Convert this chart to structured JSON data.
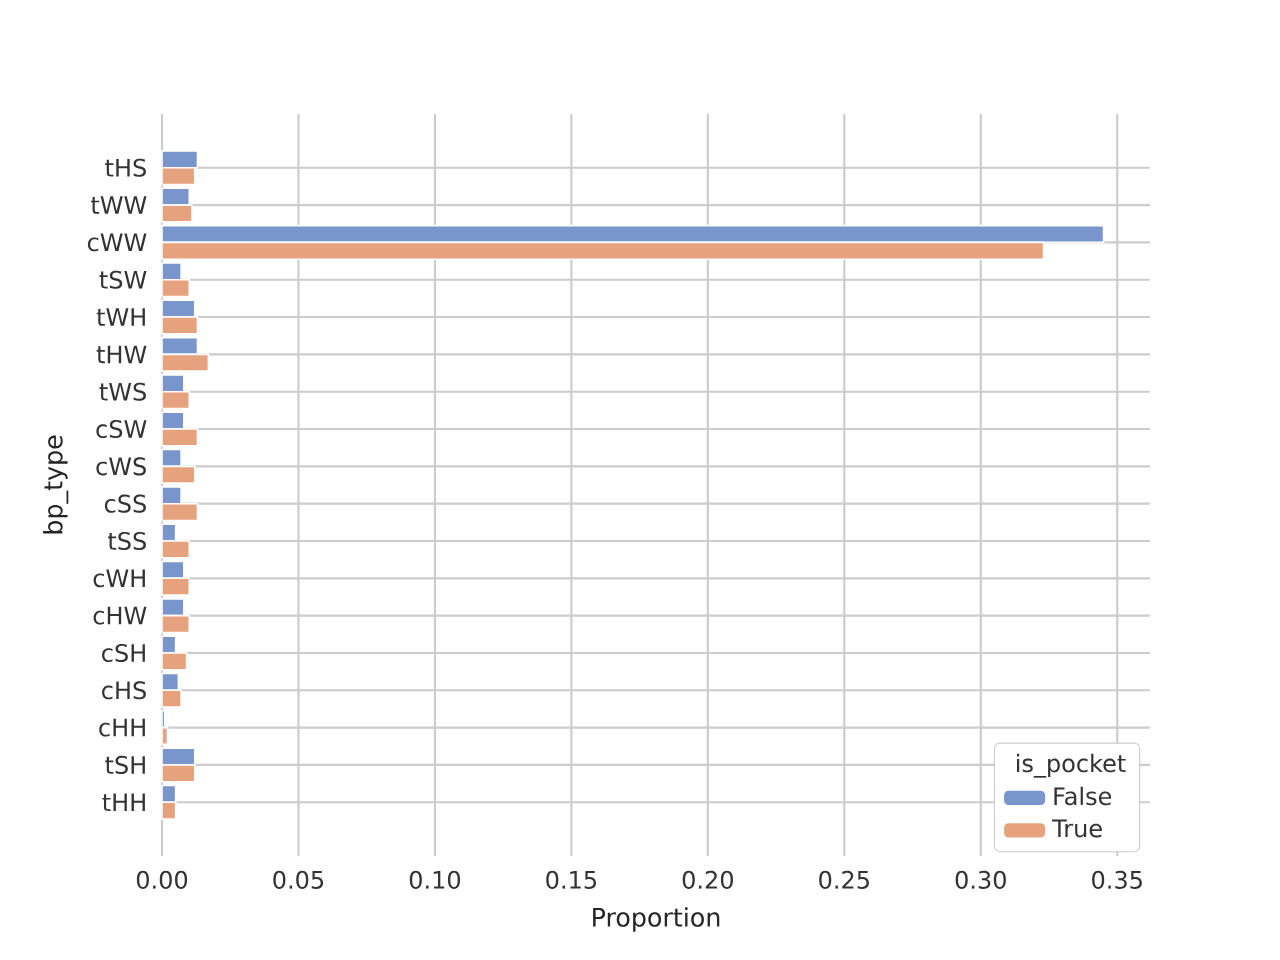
{
  "chart_data": {
    "type": "bar",
    "orientation": "horizontal",
    "xlabel": "Proportion",
    "ylabel": "bp_type",
    "legend_title": "is_pocket",
    "categories": [
      "tHS",
      "tWW",
      "cWW",
      "tSW",
      "tWH",
      "tHW",
      "tWS",
      "cSW",
      "cWS",
      "cSS",
      "tSS",
      "cWH",
      "cHW",
      "cSH",
      "cHS",
      "cHH",
      "tSH",
      "tHH"
    ],
    "series": [
      {
        "name": "False",
        "color": "#7896cb",
        "values": [
          0.013,
          0.01,
          0.345,
          0.007,
          0.012,
          0.013,
          0.008,
          0.008,
          0.007,
          0.007,
          0.005,
          0.008,
          0.008,
          0.005,
          0.006,
          0.001,
          0.012,
          0.005
        ]
      },
      {
        "name": "True",
        "color": "#e6a27c",
        "values": [
          0.012,
          0.011,
          0.323,
          0.01,
          0.013,
          0.017,
          0.01,
          0.013,
          0.012,
          0.013,
          0.01,
          0.01,
          0.01,
          0.009,
          0.007,
          0.002,
          0.012,
          0.005
        ]
      }
    ],
    "xlim": [
      0,
      0.362
    ],
    "xticks": [
      {
        "value": 0,
        "label": "0.00"
      },
      {
        "value": 0.05,
        "label": "0.05"
      },
      {
        "value": 0.1,
        "label": "0.10"
      },
      {
        "value": 0.15,
        "label": "0.15"
      },
      {
        "value": 0.2,
        "label": "0.20"
      },
      {
        "value": 0.25,
        "label": "0.25"
      },
      {
        "value": 0.3,
        "label": "0.30"
      },
      {
        "value": 0.35,
        "label": "0.35"
      }
    ],
    "grid": true,
    "legend": "bottom right"
  }
}
